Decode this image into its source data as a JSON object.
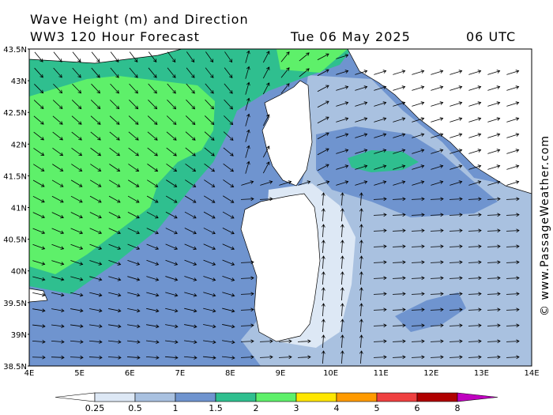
{
  "header": {
    "title": "Wave Height (m) and Direction",
    "subtitle": "WW3 120 Hour Forecast",
    "date": "Tue 06 May 2025",
    "time": "06 UTC"
  },
  "map": {
    "lat_labels": [
      "43.5N",
      "43N",
      "42.5N",
      "42N",
      "41.5N",
      "41N",
      "40.5N",
      "40N",
      "39.5N",
      "39N",
      "38.5N"
    ],
    "lon_labels": [
      "4E",
      "5E",
      "6E",
      "7E",
      "8E",
      "9E",
      "10E",
      "11E",
      "12E",
      "13E",
      "14E"
    ]
  },
  "legend": {
    "labels": [
      0.25,
      0.5,
      1,
      1.5,
      2,
      3,
      4,
      5,
      6,
      8
    ]
  },
  "watermark": "© www.PassageWeather.com"
}
